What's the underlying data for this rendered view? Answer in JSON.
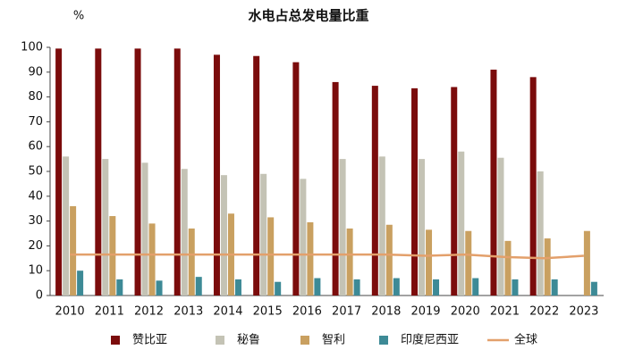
{
  "chart_data": {
    "type": "bar",
    "title": "水电占总发电量比重",
    "y_label": "%",
    "categories": [
      "2010",
      "2011",
      "2012",
      "2013",
      "2014",
      "2015",
      "2016",
      "2017",
      "2018",
      "2019",
      "2020",
      "2021",
      "2022",
      "2023"
    ],
    "series": [
      {
        "name": "赞比亚",
        "color": "#7b0c0c",
        "values": [
          99.5,
          99.5,
          99.5,
          99.5,
          97,
          96.5,
          94,
          86,
          84.5,
          83.5,
          84,
          91,
          88,
          null
        ]
      },
      {
        "name": "秘鲁",
        "color": "#c4c3b5",
        "values": [
          56,
          55,
          53.5,
          51,
          48.5,
          49,
          47,
          55,
          56,
          55,
          58,
          55.5,
          50,
          null
        ]
      },
      {
        "name": "智利",
        "color": "#c9a060",
        "values": [
          36,
          32,
          29,
          27,
          33,
          31.5,
          29.5,
          27,
          28.5,
          26.5,
          26,
          22,
          23,
          26
        ]
      },
      {
        "name": "印度尼西亚",
        "color": "#3d8a96",
        "values": [
          10,
          6.5,
          6,
          7.5,
          6.5,
          5.5,
          7,
          6.5,
          7,
          6.5,
          7,
          6.5,
          6.5,
          5.5
        ]
      },
      {
        "name": "全球",
        "color": "#e3a06b",
        "type": "line",
        "values": [
          16.5,
          16.5,
          16.5,
          16.5,
          16.5,
          16.5,
          16.5,
          16.5,
          16.5,
          16,
          16.5,
          15.5,
          15,
          16
        ]
      }
    ],
    "ylim": [
      0,
      100
    ],
    "yticks": [
      0,
      10,
      20,
      30,
      40,
      50,
      60,
      70,
      80,
      90,
      100
    ],
    "grid": false,
    "legend": "bottom"
  }
}
